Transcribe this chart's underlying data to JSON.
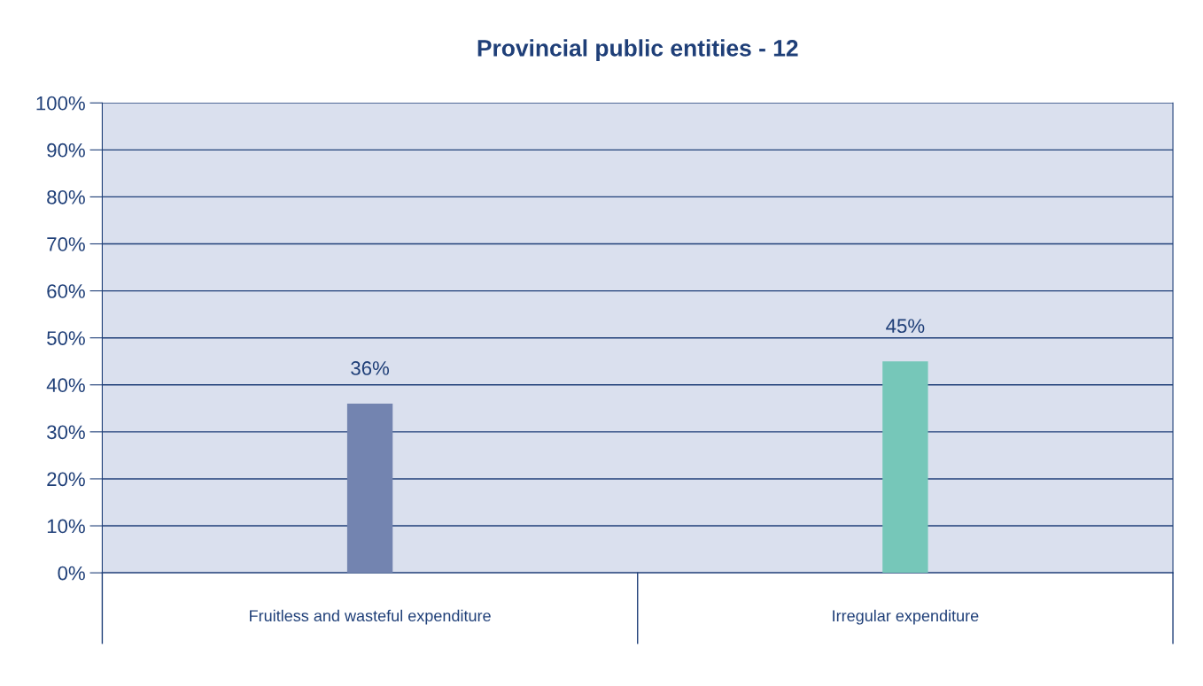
{
  "chart_data": {
    "type": "bar",
    "title": "Provincial public entities - 12",
    "categories": [
      "Fruitless and wasteful expenditure",
      "Irregular expenditure"
    ],
    "values": [
      36,
      45
    ],
    "colors": [
      "#7384b0",
      "#76c7b9"
    ],
    "value_labels": [
      "36%",
      "45%"
    ],
    "ylim": [
      0,
      100
    ],
    "yticks": [
      {
        "value": 0,
        "label": "0%"
      },
      {
        "value": 10,
        "label": "10%"
      },
      {
        "value": 20,
        "label": "20%"
      },
      {
        "value": 30,
        "label": "30%"
      },
      {
        "value": 40,
        "label": "40%"
      },
      {
        "value": 50,
        "label": "50%"
      },
      {
        "value": 60,
        "label": "60%"
      },
      {
        "value": 70,
        "label": "70%"
      },
      {
        "value": 80,
        "label": "80%"
      },
      {
        "value": 90,
        "label": "90%"
      },
      {
        "value": 100,
        "label": "100%"
      }
    ],
    "grid": "y",
    "legend": false
  }
}
